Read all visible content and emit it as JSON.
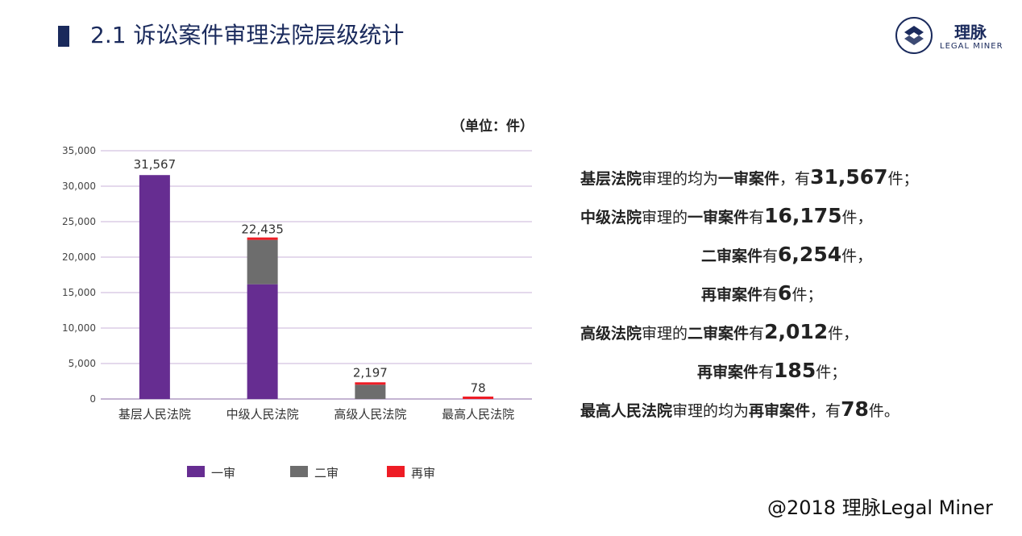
{
  "header": {
    "title": "2.1 诉讼案件审理法院层级统计",
    "logo_cn": "理脉",
    "logo_en": "LEGAL MINER"
  },
  "unit_label": "（单位：件）",
  "colors": {
    "first_instance": "#662d91",
    "second_instance": "#6d6d6d",
    "retrial": "#ee1c25",
    "navy": "#1a2a5c",
    "grid": "#c9b3d9"
  },
  "chart_data": {
    "type": "bar",
    "stacked": true,
    "categories": [
      "基层人民法院",
      "中级人民法院",
      "高级人民法院",
      "最高人民法院"
    ],
    "series": [
      {
        "name": "一审",
        "values": [
          31567,
          16175,
          0,
          0
        ]
      },
      {
        "name": "二审",
        "values": [
          0,
          6254,
          2012,
          0
        ]
      },
      {
        "name": "再审",
        "values": [
          0,
          6,
          185,
          78
        ]
      }
    ],
    "totals_labels": [
      "31,567",
      "22,435",
      "2,197",
      "78"
    ],
    "yticks": [
      "0",
      "5,000",
      "10,000",
      "15,000",
      "20,000",
      "25,000",
      "30,000",
      "35,000"
    ],
    "ylim": [
      0,
      35000
    ],
    "grid": true,
    "legend_position": "bottom"
  },
  "description": [
    [
      {
        "t": "基层法院",
        "s": "b"
      },
      {
        "t": "审理的均为",
        "s": ""
      },
      {
        "t": "一审案件",
        "s": "b"
      },
      {
        "t": "，有",
        "s": ""
      },
      {
        "t": "31,567",
        "s": "big"
      },
      {
        "t": "件；",
        "s": ""
      }
    ],
    [
      {
        "t": "中级法院",
        "s": "b"
      },
      {
        "t": "审理的",
        "s": ""
      },
      {
        "t": "一审案件",
        "s": "b"
      },
      {
        "t": "有",
        "s": ""
      },
      {
        "t": "16,175",
        "s": "big"
      },
      {
        "t": "件，",
        "s": ""
      }
    ],
    [
      {
        "t": "二审案件",
        "s": "b"
      },
      {
        "t": "有",
        "s": ""
      },
      {
        "t": "6,254",
        "s": "big"
      },
      {
        "t": "件，",
        "s": ""
      }
    ],
    [
      {
        "t": "再审案件",
        "s": "b"
      },
      {
        "t": "有",
        "s": ""
      },
      {
        "t": "6",
        "s": "big"
      },
      {
        "t": "件；",
        "s": ""
      }
    ],
    [
      {
        "t": "高级法院",
        "s": "b"
      },
      {
        "t": "审理的",
        "s": ""
      },
      {
        "t": "二审案件",
        "s": "b"
      },
      {
        "t": "有",
        "s": ""
      },
      {
        "t": "2,012",
        "s": "big"
      },
      {
        "t": "件，",
        "s": ""
      }
    ],
    [
      {
        "t": "再审案件",
        "s": "b"
      },
      {
        "t": "有",
        "s": ""
      },
      {
        "t": "185",
        "s": "big"
      },
      {
        "t": "件；",
        "s": ""
      }
    ],
    [
      {
        "t": "最高人民法院",
        "s": "b"
      },
      {
        "t": "审理的均为",
        "s": ""
      },
      {
        "t": "再审案件",
        "s": "b"
      },
      {
        "t": "，有",
        "s": ""
      },
      {
        "t": "78",
        "s": "big"
      },
      {
        "t": "件。",
        "s": ""
      }
    ]
  ],
  "footer": "@2018 理脉Legal Miner"
}
